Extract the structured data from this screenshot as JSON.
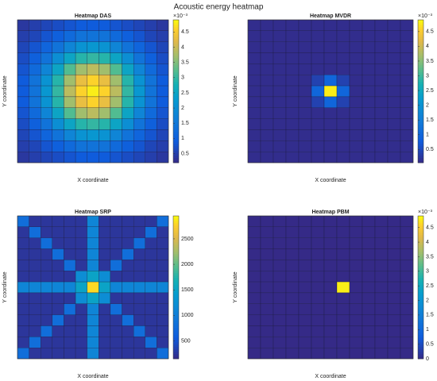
{
  "title": "Acoustic energy heatmap",
  "chart_data": [
    {
      "type": "heatmap",
      "title": "Heatmap DAS",
      "xlabel": "X coordinate",
      "ylabel": "Y coordinate",
      "clim": [
        0.2,
        4.9
      ],
      "cticks": [
        0.5,
        1,
        1.5,
        2,
        2.5,
        3,
        3.5,
        4,
        4.5
      ],
      "cmultiplier": "×10⁻³",
      "values": [
        [
          0.4,
          0.5,
          0.6,
          0.7,
          0.8,
          0.9,
          0.9,
          0.9,
          0.8,
          0.7,
          0.6,
          0.5,
          0.4
        ],
        [
          0.5,
          0.6,
          0.8,
          1.0,
          1.2,
          1.4,
          1.4,
          1.4,
          1.2,
          1.0,
          0.8,
          0.6,
          0.5
        ],
        [
          0.6,
          0.8,
          1.1,
          1.4,
          1.8,
          2.1,
          2.2,
          2.1,
          1.8,
          1.4,
          1.1,
          0.8,
          0.6
        ],
        [
          0.7,
          1.0,
          1.4,
          2.0,
          2.5,
          2.9,
          3.0,
          2.9,
          2.5,
          2.0,
          1.4,
          1.0,
          0.7
        ],
        [
          0.8,
          1.2,
          1.8,
          2.5,
          3.2,
          3.7,
          3.9,
          3.7,
          3.2,
          2.5,
          1.8,
          1.2,
          0.8
        ],
        [
          0.9,
          1.4,
          2.1,
          2.9,
          3.7,
          4.3,
          4.6,
          4.3,
          3.7,
          2.9,
          2.1,
          1.4,
          0.9
        ],
        [
          0.9,
          1.4,
          2.2,
          3.0,
          3.9,
          4.6,
          4.8,
          4.6,
          3.9,
          3.0,
          2.2,
          1.4,
          0.9
        ],
        [
          0.9,
          1.4,
          2.1,
          2.9,
          3.7,
          4.3,
          4.6,
          4.3,
          3.7,
          2.9,
          2.1,
          1.4,
          0.9
        ],
        [
          0.8,
          1.2,
          1.8,
          2.5,
          3.2,
          3.7,
          3.9,
          3.7,
          3.2,
          2.5,
          1.8,
          1.2,
          0.8
        ],
        [
          0.7,
          1.0,
          1.4,
          2.0,
          2.5,
          2.9,
          3.0,
          2.9,
          2.5,
          2.0,
          1.4,
          1.0,
          0.7
        ],
        [
          0.6,
          0.8,
          1.1,
          1.4,
          1.8,
          2.1,
          2.2,
          2.1,
          1.8,
          1.4,
          1.1,
          0.8,
          0.6
        ],
        [
          0.5,
          0.6,
          0.8,
          1.0,
          1.2,
          1.4,
          1.4,
          1.4,
          1.2,
          1.0,
          0.8,
          0.6,
          0.5
        ],
        [
          0.4,
          0.5,
          0.6,
          0.7,
          0.8,
          0.9,
          0.9,
          0.9,
          0.8,
          0.7,
          0.6,
          0.5,
          0.4
        ]
      ]
    },
    {
      "type": "heatmap",
      "title": "Heatmap MVDR",
      "xlabel": "X coordinate",
      "ylabel": "Y coordinate",
      "clim": [
        0.05,
        4.9
      ],
      "cticks": [
        0.5,
        1,
        1.5,
        2,
        2.5,
        3,
        3.5,
        4,
        4.5
      ],
      "cmultiplier": "×10⁻³",
      "values": [
        [
          0.1,
          0.1,
          0.1,
          0.1,
          0.1,
          0.1,
          0.1,
          0.1,
          0.1,
          0.1,
          0.1,
          0.1,
          0.1
        ],
        [
          0.1,
          0.1,
          0.1,
          0.1,
          0.1,
          0.1,
          0.1,
          0.1,
          0.1,
          0.1,
          0.1,
          0.1,
          0.1
        ],
        [
          0.1,
          0.1,
          0.1,
          0.1,
          0.1,
          0.1,
          0.1,
          0.1,
          0.1,
          0.1,
          0.1,
          0.1,
          0.1
        ],
        [
          0.1,
          0.1,
          0.1,
          0.1,
          0.1,
          0.1,
          0.1,
          0.1,
          0.1,
          0.1,
          0.1,
          0.1,
          0.1
        ],
        [
          0.1,
          0.1,
          0.1,
          0.1,
          0.1,
          0.1,
          0.1,
          0.1,
          0.1,
          0.1,
          0.1,
          0.1,
          0.1
        ],
        [
          0.1,
          0.1,
          0.1,
          0.1,
          0.1,
          0.4,
          1.0,
          0.4,
          0.1,
          0.1,
          0.1,
          0.1,
          0.1
        ],
        [
          0.1,
          0.1,
          0.1,
          0.1,
          0.1,
          1.0,
          4.8,
          1.0,
          0.1,
          0.1,
          0.1,
          0.1,
          0.1
        ],
        [
          0.1,
          0.1,
          0.1,
          0.1,
          0.1,
          0.4,
          1.0,
          0.4,
          0.1,
          0.1,
          0.1,
          0.1,
          0.1
        ],
        [
          0.1,
          0.1,
          0.1,
          0.1,
          0.1,
          0.1,
          0.1,
          0.1,
          0.1,
          0.1,
          0.1,
          0.1,
          0.1
        ],
        [
          0.1,
          0.1,
          0.1,
          0.1,
          0.1,
          0.1,
          0.1,
          0.1,
          0.1,
          0.1,
          0.1,
          0.1,
          0.1
        ],
        [
          0.1,
          0.1,
          0.1,
          0.1,
          0.1,
          0.1,
          0.1,
          0.1,
          0.1,
          0.1,
          0.1,
          0.1,
          0.1
        ],
        [
          0.1,
          0.1,
          0.1,
          0.1,
          0.1,
          0.1,
          0.1,
          0.1,
          0.1,
          0.1,
          0.1,
          0.1,
          0.1
        ],
        [
          0.1,
          0.1,
          0.1,
          0.1,
          0.1,
          0.1,
          0.1,
          0.1,
          0.1,
          0.1,
          0.1,
          0.1,
          0.1
        ]
      ]
    },
    {
      "type": "heatmap",
      "title": "Heatmap SRP",
      "xlabel": "X coordinate",
      "ylabel": "Y coordinate",
      "clim": [
        150,
        2950
      ],
      "cticks": [
        500,
        1000,
        1500,
        2000,
        2500
      ],
      "values": [
        [
          800,
          250,
          250,
          250,
          250,
          250,
          1100,
          250,
          250,
          250,
          250,
          250,
          800
        ],
        [
          250,
          800,
          250,
          250,
          250,
          250,
          1100,
          250,
          250,
          250,
          250,
          800,
          250
        ],
        [
          250,
          250,
          800,
          250,
          250,
          250,
          1100,
          250,
          250,
          250,
          800,
          250,
          250
        ],
        [
          250,
          250,
          250,
          800,
          250,
          250,
          1100,
          250,
          250,
          800,
          250,
          250,
          250
        ],
        [
          250,
          250,
          250,
          250,
          800,
          250,
          1100,
          250,
          800,
          250,
          250,
          250,
          250
        ],
        [
          250,
          250,
          250,
          250,
          250,
          1200,
          1500,
          1200,
          250,
          250,
          250,
          250,
          250
        ],
        [
          1100,
          1100,
          1100,
          1100,
          1100,
          1500,
          2800,
          1500,
          1100,
          1100,
          1100,
          1100,
          1100
        ],
        [
          250,
          250,
          250,
          250,
          250,
          1200,
          1500,
          1200,
          250,
          250,
          250,
          250,
          250
        ],
        [
          250,
          250,
          250,
          250,
          800,
          250,
          1100,
          250,
          800,
          250,
          250,
          250,
          250
        ],
        [
          250,
          250,
          250,
          800,
          250,
          250,
          1100,
          250,
          250,
          800,
          250,
          250,
          250
        ],
        [
          250,
          250,
          800,
          250,
          250,
          250,
          1100,
          250,
          250,
          250,
          800,
          250,
          250
        ],
        [
          250,
          800,
          250,
          250,
          250,
          250,
          1100,
          250,
          250,
          250,
          250,
          800,
          250
        ],
        [
          800,
          250,
          250,
          250,
          250,
          250,
          1100,
          250,
          250,
          250,
          250,
          250,
          800
        ]
      ]
    },
    {
      "type": "heatmap",
      "title": "Heatmap PBM",
      "xlabel": "X coordinate",
      "ylabel": "Y coordinate",
      "clim": [
        0,
        4.9
      ],
      "cticks": [
        0,
        0.5,
        1,
        1.5,
        2,
        2.5,
        3,
        3.5,
        4,
        4.5
      ],
      "cmultiplier": "×10⁻³",
      "values": [
        [
          0,
          0,
          0,
          0,
          0,
          0,
          0,
          0,
          0,
          0,
          0,
          0,
          0
        ],
        [
          0,
          0,
          0,
          0,
          0,
          0,
          0,
          0,
          0,
          0,
          0,
          0,
          0
        ],
        [
          0,
          0,
          0,
          0,
          0,
          0,
          0,
          0,
          0,
          0,
          0,
          0,
          0
        ],
        [
          0,
          0,
          0,
          0,
          0,
          0,
          0,
          0,
          0,
          0,
          0,
          0,
          0
        ],
        [
          0,
          0,
          0,
          0,
          0,
          0,
          0,
          0,
          0,
          0,
          0,
          0,
          0
        ],
        [
          0,
          0,
          0,
          0,
          0,
          0,
          0,
          0,
          0,
          0,
          0,
          0,
          0
        ],
        [
          0,
          0,
          0,
          0,
          0,
          0,
          0,
          4.8,
          0,
          0,
          0,
          0,
          0
        ],
        [
          0,
          0,
          0,
          0,
          0,
          0,
          0,
          0,
          0,
          0,
          0,
          0,
          0
        ],
        [
          0,
          0,
          0,
          0,
          0,
          0,
          0,
          0,
          0,
          0,
          0,
          0,
          0
        ],
        [
          0,
          0,
          0,
          0,
          0,
          0,
          0,
          0,
          0,
          0,
          0,
          0,
          0
        ],
        [
          0,
          0,
          0,
          0,
          0,
          0,
          0,
          0,
          0,
          0,
          0,
          0,
          0
        ],
        [
          0,
          0,
          0,
          0,
          0,
          0,
          0,
          0,
          0,
          0,
          0,
          0,
          0
        ],
        [
          0,
          0,
          0,
          0,
          0,
          0,
          0,
          0,
          0,
          0,
          0,
          0,
          0
        ]
      ]
    }
  ]
}
